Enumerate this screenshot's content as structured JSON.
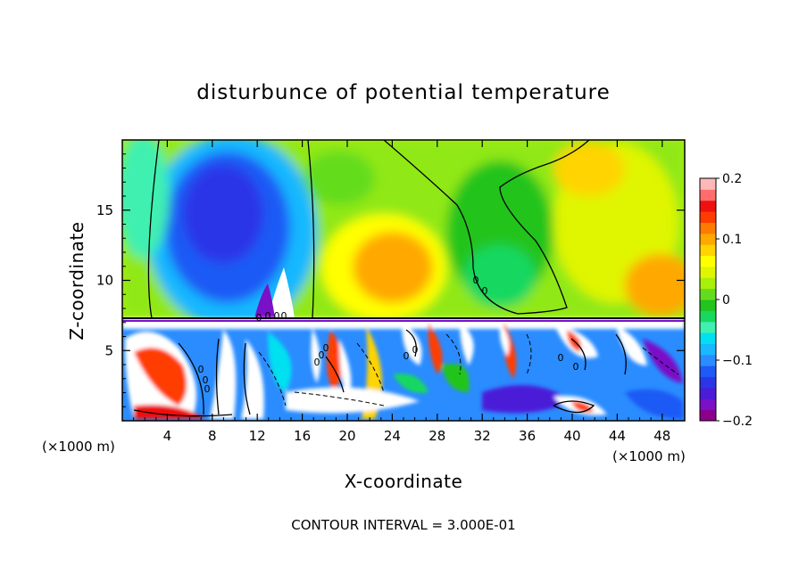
{
  "chart_data": {
    "type": "heatmap",
    "title": "disturbunce of potential temperature",
    "xlabel": "X-coordinate",
    "ylabel": "Z-coordinate",
    "x_unit_left": "(×1000 m)",
    "x_unit_right": "(×1000 m)",
    "footer": "CONTOUR INTERVAL = 3.000E-01",
    "xlim": [
      0,
      50
    ],
    "ylim": [
      0,
      20
    ],
    "x_ticks": [
      "4",
      "8",
      "12",
      "16",
      "20",
      "24",
      "28",
      "32",
      "36",
      "40",
      "44",
      "48"
    ],
    "y_ticks": [
      "5",
      "10",
      "15"
    ],
    "colorbar": {
      "ticks": [
        "0.2",
        "0.1",
        "0",
        "−0.1",
        "−0.2"
      ],
      "range": [
        -0.2,
        0.2
      ],
      "levels": [
        "#8b008b",
        "#7a10c8",
        "#4b1bd8",
        "#2a36e8",
        "#1e5af5",
        "#2a8cff",
        "#19b8ff",
        "#00e0f0",
        "#40f0b0",
        "#18d860",
        "#22c41e",
        "#64dc1e",
        "#a8f00a",
        "#e0f500",
        "#ffff00",
        "#ffd400",
        "#ffa800",
        "#ff7a00",
        "#ff3c00",
        "#f01010",
        "#ff6c6c",
        "#ffb8b8"
      ]
    },
    "boundary_height": 7.3,
    "contour_labels": [
      "0",
      "0",
      "0",
      "0",
      "0",
      "0",
      "0",
      "0",
      "0",
      "0",
      "0",
      "0",
      "0",
      "0",
      "0",
      "0"
    ]
  }
}
